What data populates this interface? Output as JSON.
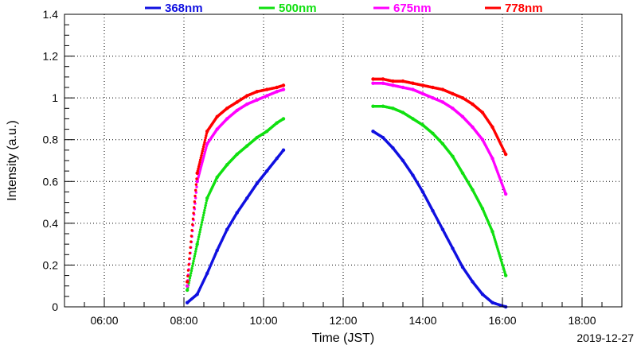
{
  "chart_data": {
    "type": "scatter",
    "xlabel": "Time (JST)",
    "ylabel": "Intensity (a.u.)",
    "date_label": "2019-12-27",
    "xlim": [
      "05:00",
      "19:00"
    ],
    "ylim": [
      0,
      1.4
    ],
    "x_tick_labels": [
      "06:00",
      "08:00",
      "10:00",
      "12:00",
      "14:00",
      "16:00",
      "18:00"
    ],
    "y_tick_labels": [
      "0",
      "0.2",
      "0.4",
      "0.6",
      "0.8",
      "1",
      "1.2",
      "1.4"
    ],
    "grid": true,
    "legend_position": "top",
    "series": [
      {
        "name": "368nm",
        "color": "#1010e0",
        "points": [
          [
            "08:05",
            0.02
          ],
          [
            "08:20",
            0.06
          ],
          [
            "08:35",
            0.16
          ],
          [
            "08:50",
            0.27
          ],
          [
            "09:05",
            0.37
          ],
          [
            "09:20",
            0.45
          ],
          [
            "09:35",
            0.52
          ],
          [
            "09:50",
            0.59
          ],
          [
            "10:05",
            0.65
          ],
          [
            "10:20",
            0.71
          ],
          [
            "10:30",
            0.75
          ],
          [
            "12:45",
            0.84
          ],
          [
            "13:00",
            0.81
          ],
          [
            "13:15",
            0.76
          ],
          [
            "13:30",
            0.7
          ],
          [
            "13:45",
            0.63
          ],
          [
            "14:00",
            0.55
          ],
          [
            "14:15",
            0.46
          ],
          [
            "14:30",
            0.37
          ],
          [
            "14:45",
            0.28
          ],
          [
            "15:00",
            0.19
          ],
          [
            "15:15",
            0.12
          ],
          [
            "15:30",
            0.06
          ],
          [
            "15:45",
            0.02
          ],
          [
            "16:05",
            0.0
          ]
        ]
      },
      {
        "name": "500nm",
        "color": "#10e010",
        "points": [
          [
            "08:05",
            0.08
          ],
          [
            "08:20",
            0.3
          ],
          [
            "08:35",
            0.52
          ],
          [
            "08:50",
            0.62
          ],
          [
            "09:05",
            0.68
          ],
          [
            "09:20",
            0.73
          ],
          [
            "09:35",
            0.77
          ],
          [
            "09:50",
            0.81
          ],
          [
            "10:05",
            0.84
          ],
          [
            "10:20",
            0.88
          ],
          [
            "10:30",
            0.9
          ],
          [
            "12:45",
            0.96
          ],
          [
            "13:00",
            0.96
          ],
          [
            "13:15",
            0.95
          ],
          [
            "13:30",
            0.93
          ],
          [
            "13:45",
            0.9
          ],
          [
            "14:00",
            0.87
          ],
          [
            "14:15",
            0.83
          ],
          [
            "14:30",
            0.78
          ],
          [
            "14:45",
            0.72
          ],
          [
            "15:00",
            0.64
          ],
          [
            "15:15",
            0.56
          ],
          [
            "15:30",
            0.47
          ],
          [
            "15:45",
            0.36
          ],
          [
            "16:05",
            0.15
          ]
        ]
      },
      {
        "name": "675nm",
        "color": "#ff00ff",
        "points": [
          [
            "08:05",
            0.1
          ],
          [
            "08:20",
            0.6
          ],
          [
            "08:35",
            0.78
          ],
          [
            "08:50",
            0.85
          ],
          [
            "09:05",
            0.9
          ],
          [
            "09:20",
            0.94
          ],
          [
            "09:35",
            0.97
          ],
          [
            "09:50",
            0.99
          ],
          [
            "10:05",
            1.01
          ],
          [
            "10:20",
            1.03
          ],
          [
            "10:30",
            1.04
          ],
          [
            "12:45",
            1.07
          ],
          [
            "13:00",
            1.07
          ],
          [
            "13:15",
            1.06
          ],
          [
            "13:30",
            1.05
          ],
          [
            "13:45",
            1.04
          ],
          [
            "14:00",
            1.02
          ],
          [
            "14:15",
            1.0
          ],
          [
            "14:30",
            0.98
          ],
          [
            "14:45",
            0.95
          ],
          [
            "15:00",
            0.91
          ],
          [
            "15:15",
            0.86
          ],
          [
            "15:30",
            0.8
          ],
          [
            "15:45",
            0.71
          ],
          [
            "16:05",
            0.54
          ]
        ]
      },
      {
        "name": "778nm",
        "color": "#ff0000",
        "points": [
          [
            "08:05",
            0.12
          ],
          [
            "08:20",
            0.64
          ],
          [
            "08:35",
            0.84
          ],
          [
            "08:50",
            0.91
          ],
          [
            "09:05",
            0.95
          ],
          [
            "09:20",
            0.98
          ],
          [
            "09:35",
            1.01
          ],
          [
            "09:50",
            1.03
          ],
          [
            "10:05",
            1.04
          ],
          [
            "10:20",
            1.05
          ],
          [
            "10:30",
            1.06
          ],
          [
            "12:45",
            1.09
          ],
          [
            "13:00",
            1.09
          ],
          [
            "13:15",
            1.08
          ],
          [
            "13:30",
            1.08
          ],
          [
            "13:45",
            1.07
          ],
          [
            "14:00",
            1.06
          ],
          [
            "14:15",
            1.05
          ],
          [
            "14:30",
            1.04
          ],
          [
            "14:45",
            1.02
          ],
          [
            "15:00",
            1.0
          ],
          [
            "15:15",
            0.97
          ],
          [
            "15:30",
            0.93
          ],
          [
            "15:45",
            0.86
          ],
          [
            "16:05",
            0.73
          ]
        ]
      }
    ]
  }
}
